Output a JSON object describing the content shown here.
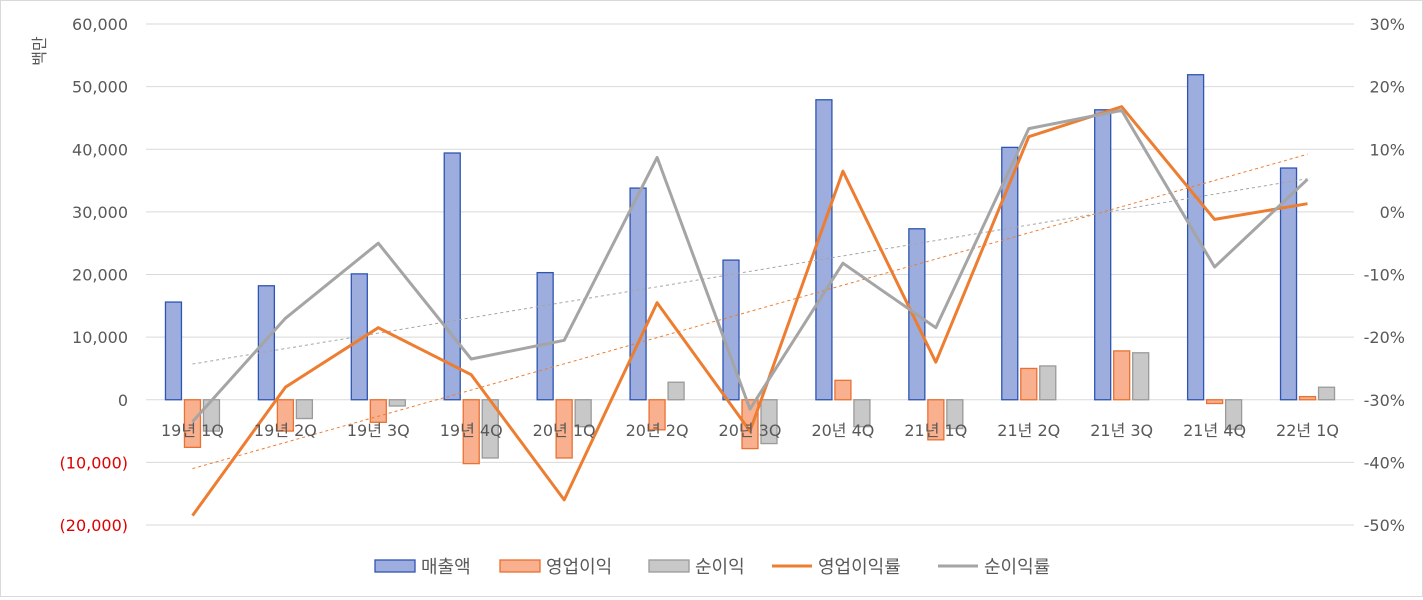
{
  "chart_data": {
    "type": "bar",
    "categories": [
      "19년 1Q",
      "19년 2Q",
      "19년 3Q",
      "19년 4Q",
      "20년 1Q",
      "20년 2Q",
      "20년 3Q",
      "20년 4Q",
      "21년 1Q",
      "21년 2Q",
      "21년 3Q",
      "21년 4Q",
      "22년 1Q"
    ],
    "ylabel": "백만",
    "ylim": [
      -20000,
      60000
    ],
    "y_ticks": [
      "60,000",
      "50,000",
      "40,000",
      "30,000",
      "20,000",
      "10,000",
      "0",
      "(10,000)",
      "(20,000)"
    ],
    "y2lim": [
      -0.5,
      0.3
    ],
    "y2_ticks": [
      "30%",
      "20%",
      "10%",
      "0%",
      "-10%",
      "-20%",
      "-30%",
      "-40%",
      "-50%"
    ],
    "grid": true,
    "legend_position": "bottom",
    "series": [
      {
        "name": "매출액",
        "kind": "bar",
        "axis": "left",
        "values": [
          15600,
          18200,
          20100,
          39400,
          20300,
          33800,
          22300,
          47900,
          27300,
          40300,
          46300,
          51900,
          37000
        ]
      },
      {
        "name": "영업이익",
        "kind": "bar",
        "axis": "left",
        "values": [
          -7600,
          -5000,
          -3600,
          -10200,
          -9300,
          -4800,
          -7800,
          3100,
          -6400,
          5000,
          7800,
          -600,
          500
        ]
      },
      {
        "name": "순이익",
        "kind": "bar",
        "axis": "left",
        "values": [
          -5000,
          -3000,
          -1000,
          -9300,
          -4300,
          2800,
          -7000,
          -4300,
          -4600,
          5400,
          7500,
          -4700,
          2000
        ]
      },
      {
        "name": "영업이익률",
        "kind": "line",
        "axis": "right",
        "values": [
          -0.485,
          -0.28,
          -0.185,
          -0.26,
          -0.46,
          -0.145,
          -0.35,
          0.065,
          -0.24,
          0.12,
          0.168,
          -0.012,
          0.013
        ]
      },
      {
        "name": "순이익률",
        "kind": "line",
        "axis": "right",
        "values": [
          -0.335,
          -0.17,
          -0.05,
          -0.235,
          -0.205,
          0.087,
          -0.315,
          -0.082,
          -0.185,
          0.133,
          0.162,
          -0.088,
          0.052
        ]
      }
    ],
    "trendlines": [
      {
        "of": "영업이익률",
        "values": [
          -0.41,
          0.092
        ]
      },
      {
        "of": "순이익률",
        "values": [
          -0.243,
          0.053
        ]
      }
    ]
  },
  "colors": {
    "sales_fill": "#9dadde",
    "sales_stroke": "#2f55b2",
    "op_fill": "#f9b08e",
    "op_stroke": "#e97132",
    "net_fill": "#c8c8c8",
    "net_stroke": "#9a9a9a",
    "op_line": "#ed7d31",
    "net_line": "#a5a5a5",
    "grid": "#d9d9d9",
    "axis_text": "#595959",
    "negative_text": "#e00000"
  }
}
